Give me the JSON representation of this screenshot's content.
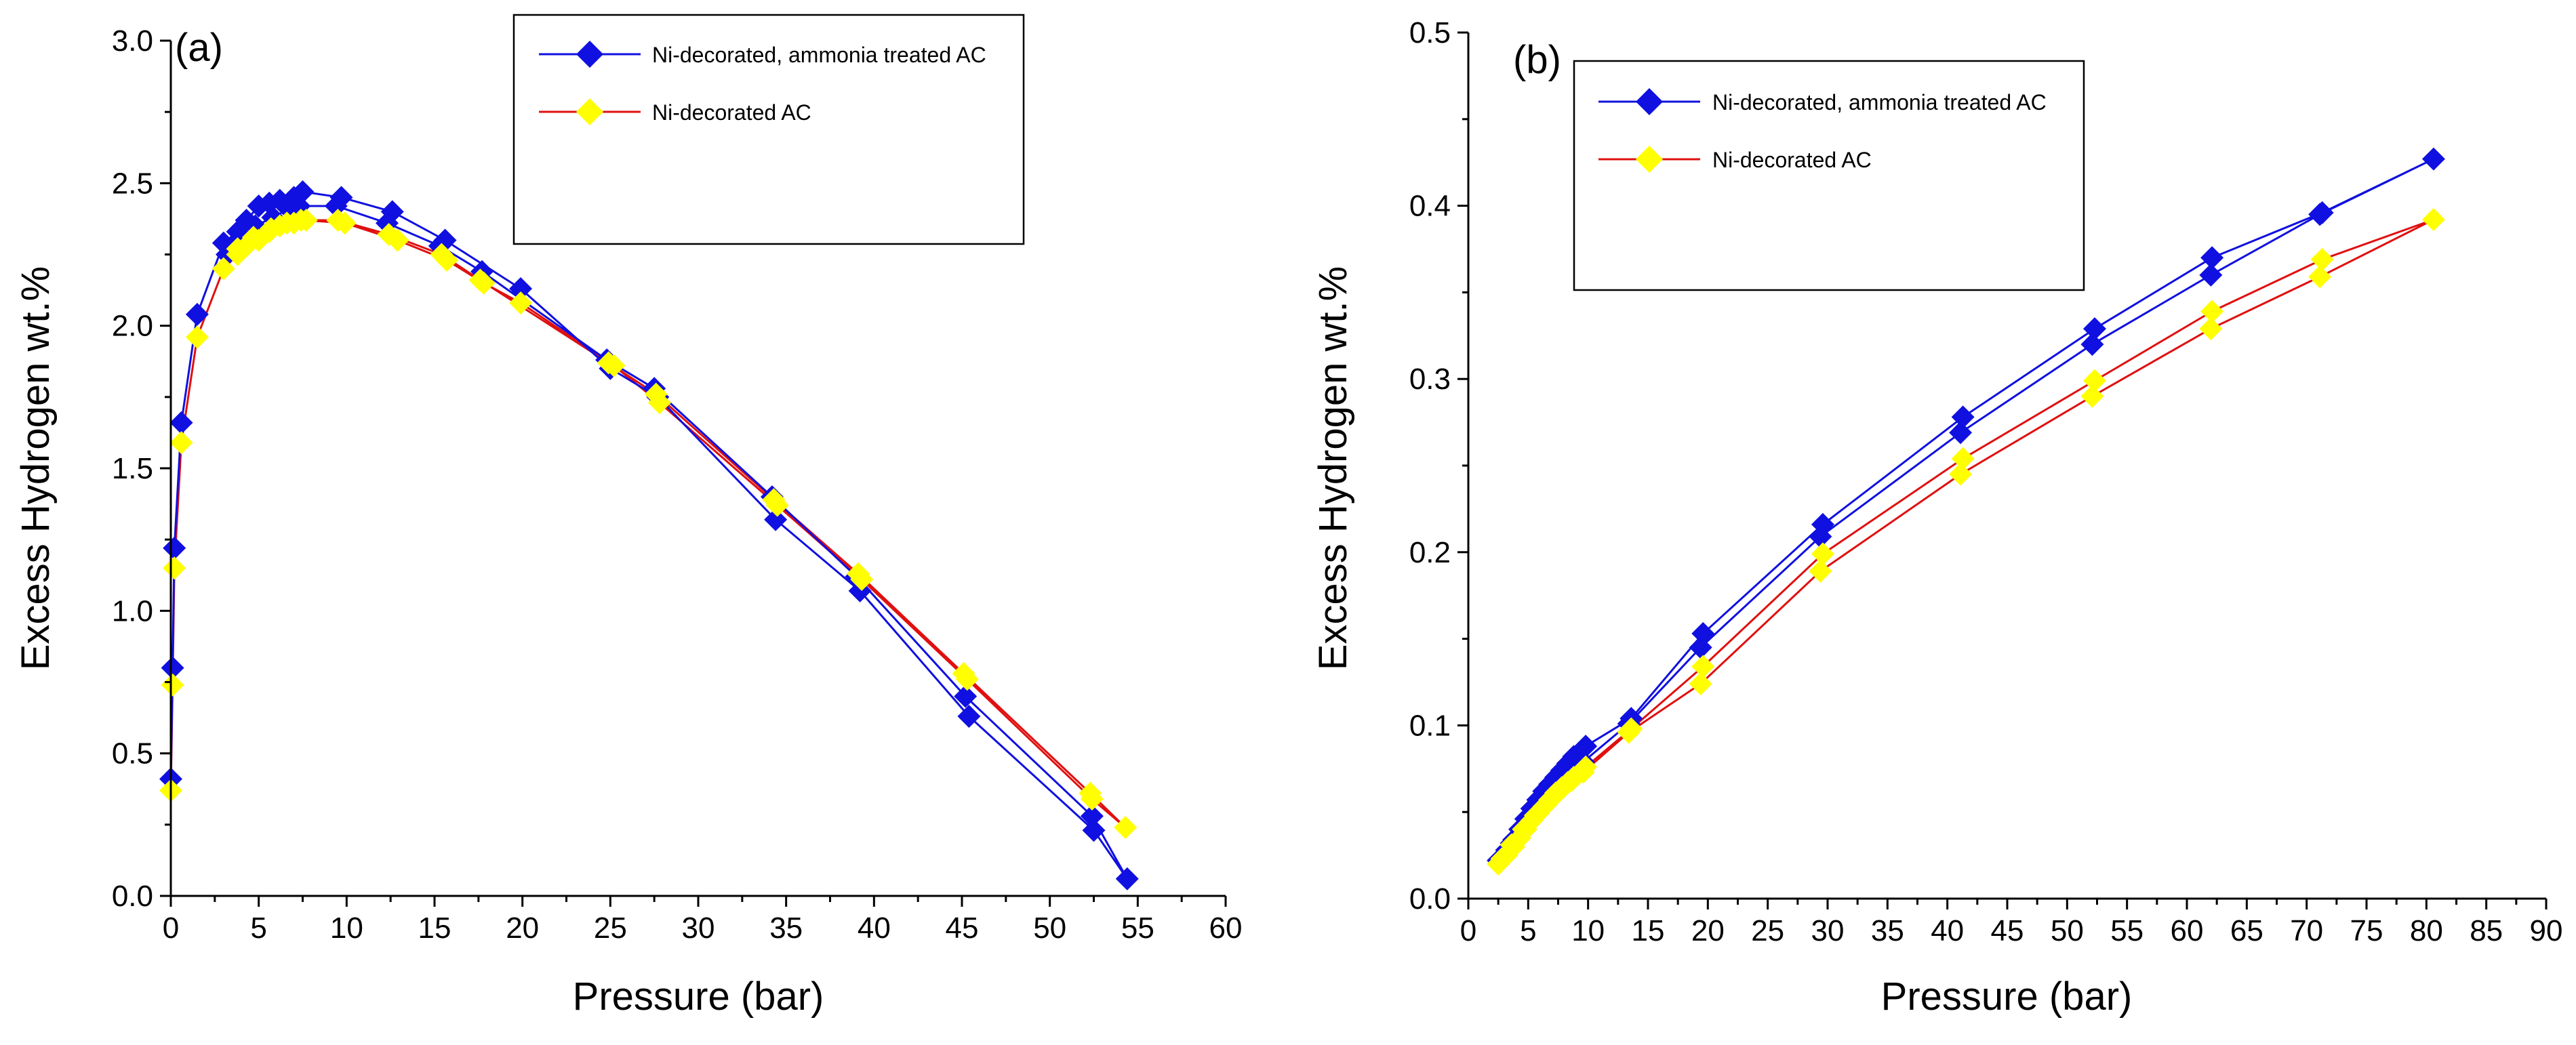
{
  "chart_data": [
    {
      "panel_label": "(a)",
      "type": "line",
      "xlabel": "Pressure (bar)",
      "ylabel": "Excess Hydrogen wt.%",
      "xlim": [
        0,
        60
      ],
      "ylim": [
        0,
        3.0
      ],
      "x_ticks": [
        "0",
        "5",
        "10",
        "15",
        "20",
        "25",
        "30",
        "35",
        "40",
        "45",
        "50",
        "55",
        "60"
      ],
      "y_ticks": [
        "0.0",
        "0.5",
        "1.0",
        "1.5",
        "2.0",
        "2.5",
        "3.0"
      ],
      "legend_position": "top-right",
      "series": [
        {
          "name": "Ni-decorated, ammonia treated AC",
          "line_color": "#1010e0",
          "marker_color": "#1010e0",
          "x": [
            0,
            0.1,
            0.2,
            0.6,
            1.5,
            3.0,
            3.8,
            4.3,
            5.0,
            5.6,
            6.2,
            7.0,
            7.5,
            9.7,
            12.6,
            15.6,
            19.9,
            25.0,
            27.7,
            34.4,
            39.2,
            45.4,
            52.5,
            54.4,
            52.4,
            45.2,
            39.0,
            34.2,
            27.5,
            24.8,
            17.7,
            15.3,
            12.3,
            9.4,
            7.3,
            6.7,
            5.8,
            4.8,
            3.9,
            3.2
          ],
          "y": [
            0.41,
            0.8,
            1.22,
            1.66,
            2.04,
            2.29,
            2.33,
            2.37,
            2.42,
            2.43,
            2.44,
            2.45,
            2.47,
            2.45,
            2.4,
            2.3,
            2.13,
            1.85,
            1.75,
            1.32,
            1.07,
            0.63,
            0.23,
            0.06,
            0.28,
            0.7,
            1.12,
            1.4,
            1.78,
            1.88,
            2.19,
            2.28,
            2.36,
            2.42,
            2.42,
            2.41,
            2.38,
            2.35,
            2.3,
            2.25
          ]
        },
        {
          "name": "Ni-decorated AC",
          "line_color": "#e01010",
          "marker_color": "#ffff00",
          "x": [
            0,
            0.1,
            0.2,
            0.6,
            1.5,
            3.0,
            3.8,
            4.3,
            5.0,
            5.6,
            6.2,
            7.0,
            7.7,
            9.9,
            12.9,
            15.7,
            17.8,
            19.9,
            25.2,
            27.8,
            34.5,
            39.3,
            45.3,
            52.4,
            54.3,
            52.3,
            45.1,
            39.1,
            34.3,
            27.6,
            24.9,
            17.6,
            15.4,
            12.4,
            9.5,
            7.4,
            6.6,
            5.7,
            4.7,
            3.8
          ],
          "y": [
            0.37,
            0.74,
            1.15,
            1.59,
            1.96,
            2.2,
            2.25,
            2.28,
            2.3,
            2.33,
            2.35,
            2.36,
            2.37,
            2.36,
            2.3,
            2.23,
            2.15,
            2.08,
            1.86,
            1.73,
            1.37,
            1.11,
            0.76,
            0.34,
            0.24,
            0.36,
            0.78,
            1.13,
            1.39,
            1.76,
            1.87,
            2.16,
            2.25,
            2.32,
            2.37,
            2.37,
            2.36,
            2.34,
            2.31,
            2.27
          ]
        }
      ]
    },
    {
      "panel_label": "(b)",
      "type": "line",
      "xlabel": "Pressure (bar)",
      "ylabel": "Excess Hydrogen wt.%",
      "xlim": [
        0,
        90
      ],
      "ylim": [
        0,
        0.5
      ],
      "x_ticks": [
        "0",
        "5",
        "10",
        "15",
        "20",
        "25",
        "30",
        "35",
        "40",
        "45",
        "50",
        "55",
        "60",
        "65",
        "70",
        "75",
        "80",
        "85",
        "90"
      ],
      "y_ticks": [
        "0.0",
        "0.1",
        "0.2",
        "0.3",
        "0.4",
        "0.5"
      ],
      "legend_position": "top-left",
      "series": [
        {
          "name": "Ni-decorated, ammonia treated AC",
          "line_color": "#1010e0",
          "marker_color": "#1010e0",
          "x": [
            2.5,
            3.2,
            3.8,
            4.3,
            4.8,
            5.3,
            5.8,
            6.3,
            6.8,
            7.3,
            7.8,
            8.3,
            8.8,
            9.8,
            13.6,
            19.6,
            29.6,
            41.3,
            52.3,
            62.1,
            71.3,
            80.6,
            71.1,
            62.0,
            52.1,
            41.1,
            29.4,
            19.4,
            13.4,
            9.6,
            8.6,
            7.6,
            6.6,
            5.6,
            4.6,
            3.6,
            2.8
          ],
          "y": [
            0.022,
            0.028,
            0.034,
            0.04,
            0.046,
            0.052,
            0.057,
            0.062,
            0.066,
            0.07,
            0.074,
            0.078,
            0.082,
            0.088,
            0.104,
            0.153,
            0.216,
            0.278,
            0.329,
            0.37,
            0.396,
            0.427,
            0.395,
            0.36,
            0.32,
            0.269,
            0.209,
            0.145,
            0.101,
            0.079,
            0.074,
            0.067,
            0.058,
            0.05,
            0.041,
            0.032,
            0.024
          ]
        },
        {
          "name": "Ni-decorated AC",
          "line_color": "#e01010",
          "marker_color": "#ffff00",
          "x": [
            2.5,
            3.2,
            3.8,
            4.3,
            4.8,
            5.3,
            5.8,
            6.3,
            6.8,
            7.3,
            7.8,
            8.3,
            8.8,
            9.8,
            13.6,
            19.6,
            29.6,
            41.3,
            52.3,
            62.1,
            71.3,
            80.6,
            71.1,
            62.0,
            52.1,
            41.1,
            29.4,
            19.4,
            13.4,
            9.6,
            8.6,
            7.6,
            6.6,
            5.6,
            4.6,
            3.6,
            2.8
          ],
          "y": [
            0.02,
            0.025,
            0.03,
            0.035,
            0.04,
            0.045,
            0.049,
            0.053,
            0.057,
            0.061,
            0.064,
            0.067,
            0.07,
            0.076,
            0.098,
            0.134,
            0.199,
            0.254,
            0.299,
            0.339,
            0.369,
            0.392,
            0.359,
            0.329,
            0.29,
            0.245,
            0.189,
            0.124,
            0.096,
            0.073,
            0.068,
            0.062,
            0.055,
            0.048,
            0.04,
            0.031,
            0.023
          ]
        }
      ]
    }
  ]
}
